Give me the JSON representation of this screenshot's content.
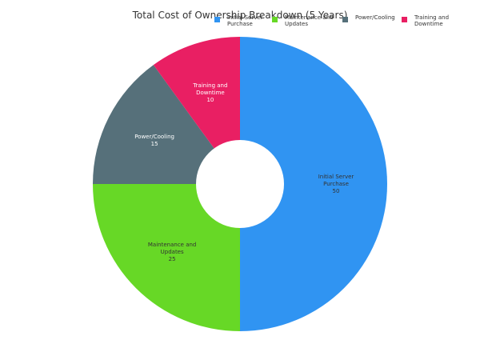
{
  "chart_data": {
    "type": "pie",
    "title": "Total Cost of Ownership Breakdown (5 Years)",
    "donut": true,
    "legend_position": "top-right",
    "slices": [
      {
        "label": "Initial Server Purchase",
        "display_label": [
          "Initial Server",
          "Purchase"
        ],
        "value": 50,
        "color": "#3094f2"
      },
      {
        "label": "Maintenance and Updates",
        "display_label": [
          "Maintenance and",
          "Updates"
        ],
        "value": 25,
        "color": "#67d826"
      },
      {
        "label": "Power/Cooling",
        "display_label": [
          "Power/Cooling"
        ],
        "value": 15,
        "color": "#56707a"
      },
      {
        "label": "Training and Downtime",
        "display_label": [
          "Training and",
          "Downtime"
        ],
        "value": 10,
        "color": "#e91f63"
      }
    ],
    "legend": [
      {
        "lines": [
          "Initial Server",
          "Purchase"
        ],
        "color": "#3094f2"
      },
      {
        "lines": [
          "Maintenance and",
          "Updates"
        ],
        "color": "#67d826"
      },
      {
        "lines": [
          "Power/Cooling"
        ],
        "color": "#56707a"
      },
      {
        "lines": [
          "Training and",
          "Downtime"
        ],
        "color": "#e91f63"
      }
    ],
    "slice_label_colors": [
      "#333333",
      "#333333",
      "#ffffff",
      "#ffffff"
    ]
  }
}
